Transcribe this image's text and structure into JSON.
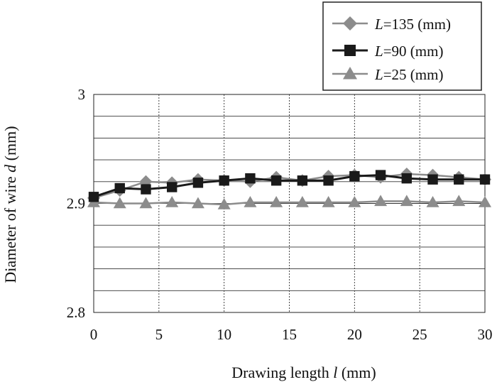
{
  "chart_data": {
    "type": "line",
    "xlabel_prefix": "Drawing length ",
    "xlabel_symbol": "l",
    "xlabel_unit": " (mm)",
    "ylabel_prefix": "Diameter of wire ",
    "ylabel_symbol": "d",
    "ylabel_unit": " (mm)",
    "xlim": [
      0,
      30
    ],
    "ylim": [
      2.8,
      3.0
    ],
    "x_ticks": [
      "0",
      "5",
      "10",
      "15",
      "20",
      "25",
      "30"
    ],
    "y_ticks": [
      "2.8",
      "2.9",
      "3"
    ],
    "grid": true,
    "legend_position": "top-right",
    "series": [
      {
        "symbol": "L",
        "name_suffix": "=135 (mm)",
        "marker": "diamond",
        "color": "#8c8c8c",
        "x": [
          0,
          2,
          4,
          6,
          8,
          10,
          12,
          14,
          16,
          18,
          20,
          22,
          24,
          26,
          28,
          30
        ],
        "y": [
          2.905,
          2.912,
          2.92,
          2.919,
          2.922,
          2.921,
          2.92,
          2.924,
          2.921,
          2.925,
          2.926,
          2.924,
          2.927,
          2.926,
          2.924,
          2.922
        ]
      },
      {
        "symbol": "L",
        "name_suffix": "=90 (mm)",
        "marker": "square",
        "color": "#1a1a1a",
        "x": [
          0,
          2,
          4,
          6,
          8,
          10,
          12,
          14,
          16,
          18,
          20,
          22,
          24,
          26,
          28,
          30
        ],
        "y": [
          2.906,
          2.914,
          2.913,
          2.915,
          2.919,
          2.921,
          2.923,
          2.921,
          2.921,
          2.921,
          2.925,
          2.926,
          2.923,
          2.922,
          2.922,
          2.922
        ]
      },
      {
        "symbol": "L",
        "name_suffix": "=25 (mm)",
        "marker": "triangle",
        "color": "#8c8c8c",
        "x": [
          0,
          2,
          4,
          6,
          8,
          10,
          12,
          14,
          16,
          18,
          20,
          22,
          24,
          26,
          28,
          30
        ],
        "y": [
          2.901,
          2.9,
          2.9,
          2.901,
          2.9,
          2.899,
          2.901,
          2.901,
          2.901,
          2.901,
          2.901,
          2.902,
          2.902,
          2.901,
          2.902,
          2.901
        ]
      }
    ]
  }
}
